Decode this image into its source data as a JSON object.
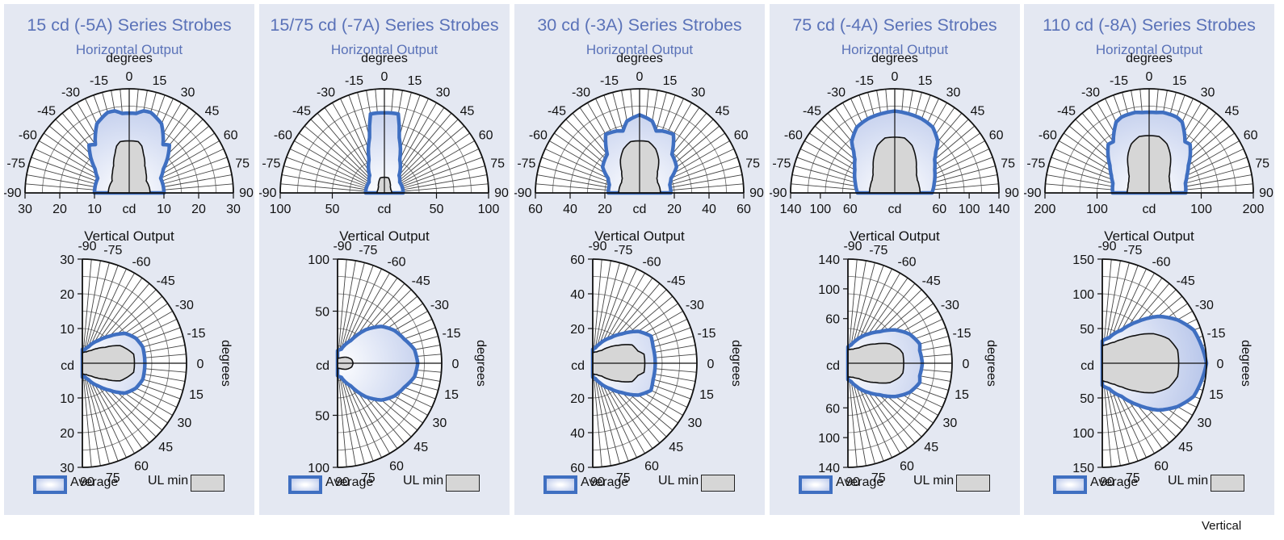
{
  "legend": {
    "average": "Average",
    "ul_min": "UL min"
  },
  "colors": {
    "panel_bg": "#e4e8f2",
    "title": "#5a72b8",
    "average_outline": "#3f6fc1",
    "average_fill_edge": "#b8c6ea",
    "ul_fill": "#d6d6d6"
  },
  "footer_text": "Vertical",
  "chart_data": [
    {
      "type": "polar",
      "title": "15 cd (-5A) Series Strobes",
      "horizontal": {
        "subtitle": "Horizontal Output",
        "angle_label": "degrees",
        "unit_label": "cd",
        "radial_max": 30,
        "radial_ticks": [
          30,
          20,
          10
        ],
        "angle_ticks": [
          -90,
          -75,
          -60,
          -45,
          -30,
          -15,
          0,
          15,
          30,
          45,
          60,
          75,
          90
        ],
        "average": [
          [
            0,
            23
          ],
          [
            5,
            23
          ],
          [
            10,
            24
          ],
          [
            15,
            24
          ],
          [
            25,
            22
          ],
          [
            35,
            17
          ],
          [
            40,
            18
          ],
          [
            45,
            16
          ],
          [
            55,
            12
          ],
          [
            65,
            10
          ],
          [
            75,
            10
          ],
          [
            90,
            10
          ]
        ],
        "ul_min": [
          [
            0,
            15
          ],
          [
            10,
            15
          ],
          [
            15,
            14
          ],
          [
            20,
            12
          ],
          [
            30,
            9
          ],
          [
            40,
            7.5
          ],
          [
            55,
            6
          ],
          [
            70,
            6
          ],
          [
            90,
            6
          ]
        ]
      },
      "vertical": {
        "title": "Vertical Output",
        "angle_label": "degrees",
        "unit_label": "cd",
        "radial_max": 30,
        "radial_ticks": [
          30,
          20,
          10
        ],
        "angle_ticks": [
          -90,
          -75,
          -60,
          -45,
          -30,
          -15,
          0,
          15,
          30,
          45,
          60,
          75,
          90
        ],
        "average": [
          [
            0,
            18
          ],
          [
            10,
            18
          ],
          [
            15,
            18
          ],
          [
            25,
            17
          ],
          [
            35,
            15
          ],
          [
            45,
            11
          ],
          [
            55,
            8
          ],
          [
            70,
            5
          ],
          [
            80,
            4
          ],
          [
            90,
            4
          ]
        ],
        "ul_min": [
          [
            0,
            15
          ],
          [
            10,
            15
          ],
          [
            15,
            14
          ],
          [
            25,
            12
          ],
          [
            35,
            8
          ],
          [
            45,
            6
          ],
          [
            55,
            4.5
          ],
          [
            70,
            3.5
          ],
          [
            90,
            3
          ]
        ]
      }
    },
    {
      "type": "polar",
      "title": "15/75 cd (-7A) Series Strobes",
      "horizontal": {
        "subtitle": "Horizontal Output",
        "angle_label": "degrees",
        "unit_label": "cd",
        "radial_max": 100,
        "radial_ticks": [
          100,
          50
        ],
        "angle_ticks": [
          -90,
          -75,
          -60,
          -45,
          -30,
          -15,
          0,
          15,
          30,
          45,
          60,
          75,
          90
        ],
        "average": [
          [
            0,
            77
          ],
          [
            5,
            77
          ],
          [
            10,
            77
          ],
          [
            15,
            55
          ],
          [
            25,
            35
          ],
          [
            40,
            22
          ],
          [
            55,
            18
          ],
          [
            70,
            18
          ],
          [
            90,
            18
          ]
        ],
        "ul_min": [
          [
            0,
            15
          ],
          [
            15,
            15
          ],
          [
            30,
            11
          ],
          [
            45,
            8
          ],
          [
            60,
            7
          ],
          [
            75,
            7
          ],
          [
            90,
            7
          ]
        ]
      },
      "vertical": {
        "title": "Vertical Output",
        "angle_label": "degrees",
        "unit_label": "cd",
        "radial_max": 100,
        "radial_ticks": [
          100,
          50
        ],
        "angle_ticks": [
          -90,
          -75,
          -60,
          -45,
          -30,
          -15,
          0,
          15,
          30,
          45,
          60,
          75,
          90
        ],
        "average": [
          [
            0,
            77
          ],
          [
            10,
            75
          ],
          [
            20,
            68
          ],
          [
            30,
            63
          ],
          [
            40,
            55
          ],
          [
            50,
            42
          ],
          [
            60,
            25
          ],
          [
            75,
            14
          ],
          [
            90,
            12
          ]
        ],
        "ul_min": [
          [
            0,
            15
          ],
          [
            15,
            14
          ],
          [
            30,
            11
          ],
          [
            45,
            8
          ],
          [
            60,
            6
          ],
          [
            75,
            5
          ],
          [
            90,
            5
          ]
        ]
      }
    },
    {
      "type": "polar",
      "title": "30 cd (-3A) Series Strobes",
      "horizontal": {
        "subtitle": "Horizontal Output",
        "angle_label": "degrees",
        "unit_label": "cd",
        "radial_max": 60,
        "radial_ticks": [
          60,
          40,
          20
        ],
        "angle_ticks": [
          -90,
          -75,
          -60,
          -45,
          -30,
          -15,
          0,
          15,
          30,
          45,
          60,
          75,
          90
        ],
        "average": [
          [
            0,
            45
          ],
          [
            10,
            42
          ],
          [
            15,
            37
          ],
          [
            20,
            38
          ],
          [
            30,
            39
          ],
          [
            40,
            29
          ],
          [
            45,
            28
          ],
          [
            55,
            26
          ],
          [
            65,
            20
          ],
          [
            75,
            18
          ],
          [
            90,
            18
          ]
        ],
        "ul_min": [
          [
            0,
            30
          ],
          [
            10,
            30
          ],
          [
            20,
            27
          ],
          [
            30,
            22
          ],
          [
            40,
            16
          ],
          [
            50,
            13
          ],
          [
            60,
            12
          ],
          [
            75,
            12
          ],
          [
            90,
            12
          ]
        ]
      },
      "vertical": {
        "title": "Vertical Output",
        "angle_label": "degrees",
        "unit_label": "cd",
        "radial_max": 60,
        "radial_ticks": [
          60,
          40,
          20
        ],
        "angle_ticks": [
          -90,
          -75,
          -60,
          -45,
          -30,
          -15,
          0,
          15,
          30,
          45,
          60,
          75,
          90
        ],
        "average": [
          [
            0,
            36
          ],
          [
            10,
            36
          ],
          [
            15,
            36
          ],
          [
            25,
            37
          ],
          [
            35,
            32
          ],
          [
            45,
            24
          ],
          [
            55,
            18
          ],
          [
            70,
            12
          ],
          [
            80,
            9
          ],
          [
            90,
            8
          ]
        ],
        "ul_min": [
          [
            0,
            30
          ],
          [
            10,
            30
          ],
          [
            15,
            27
          ],
          [
            25,
            25
          ],
          [
            35,
            18
          ],
          [
            45,
            13
          ],
          [
            55,
            9
          ],
          [
            70,
            7
          ],
          [
            90,
            6
          ]
        ]
      }
    },
    {
      "type": "polar",
      "title": "75 cd (-4A) Series Strobes",
      "horizontal": {
        "subtitle": "Horizontal Output",
        "angle_label": "degrees",
        "unit_label": "cd",
        "radial_max": 140,
        "radial_ticks": [
          140,
          100,
          60
        ],
        "angle_ticks": [
          -90,
          -75,
          -60,
          -45,
          -30,
          -15,
          0,
          15,
          30,
          45,
          60,
          75,
          90
        ],
        "average": [
          [
            0,
            110
          ],
          [
            10,
            108
          ],
          [
            20,
            106
          ],
          [
            30,
            102
          ],
          [
            40,
            90
          ],
          [
            45,
            78
          ],
          [
            50,
            70
          ],
          [
            60,
            62
          ],
          [
            75,
            55
          ],
          [
            90,
            50
          ]
        ],
        "ul_min": [
          [
            0,
            75
          ],
          [
            10,
            75
          ],
          [
            20,
            68
          ],
          [
            30,
            56
          ],
          [
            40,
            45
          ],
          [
            50,
            38
          ],
          [
            60,
            35
          ],
          [
            75,
            34
          ],
          [
            90,
            34
          ]
        ]
      },
      "vertical": {
        "title": "Vertical Output",
        "angle_label": "degrees",
        "unit_label": "cd",
        "radial_max": 140,
        "radial_ticks": [
          140,
          100,
          60
        ],
        "angle_ticks": [
          -90,
          -75,
          -60,
          -45,
          -30,
          -15,
          0,
          15,
          30,
          45,
          60,
          75,
          90
        ],
        "average": [
          [
            0,
            100
          ],
          [
            10,
            98
          ],
          [
            15,
            100
          ],
          [
            25,
            92
          ],
          [
            35,
            78
          ],
          [
            45,
            60
          ],
          [
            55,
            48
          ],
          [
            70,
            33
          ],
          [
            80,
            25
          ],
          [
            90,
            22
          ]
        ],
        "ul_min": [
          [
            0,
            75
          ],
          [
            10,
            75
          ],
          [
            15,
            72
          ],
          [
            25,
            62
          ],
          [
            35,
            45
          ],
          [
            45,
            34
          ],
          [
            55,
            25
          ],
          [
            70,
            20
          ],
          [
            90,
            18
          ]
        ]
      }
    },
    {
      "type": "polar",
      "title": "110 cd (-8A) Series Strobes",
      "horizontal": {
        "subtitle": "Horizontal Output",
        "angle_label": "degrees",
        "unit_label": "cd",
        "radial_max": 200,
        "radial_ticks": [
          200,
          100
        ],
        "angle_ticks": [
          -90,
          -75,
          -60,
          -45,
          -30,
          -15,
          0,
          15,
          30,
          45,
          60,
          75,
          90
        ],
        "average": [
          [
            0,
            155
          ],
          [
            5,
            155
          ],
          [
            10,
            157
          ],
          [
            20,
            155
          ],
          [
            25,
            150
          ],
          [
            35,
            120
          ],
          [
            40,
            122
          ],
          [
            45,
            112
          ],
          [
            55,
            92
          ],
          [
            65,
            80
          ],
          [
            75,
            72
          ],
          [
            90,
            70
          ]
        ],
        "ul_min": [
          [
            0,
            110
          ],
          [
            10,
            110
          ],
          [
            20,
            100
          ],
          [
            30,
            82
          ],
          [
            40,
            62
          ],
          [
            50,
            50
          ],
          [
            60,
            45
          ],
          [
            75,
            42
          ],
          [
            90,
            42
          ]
        ]
      },
      "vertical": {
        "title": "Vertical Output",
        "angle_label": "degrees",
        "unit_label": "cd",
        "radial_max": 150,
        "radial_ticks": [
          150,
          100,
          50
        ],
        "angle_ticks": [
          -90,
          -75,
          -60,
          -45,
          -30,
          -15,
          0,
          15,
          30,
          45,
          60,
          75,
          90
        ],
        "average": [
          [
            0,
            150
          ],
          [
            10,
            145
          ],
          [
            20,
            140
          ],
          [
            30,
            125
          ],
          [
            40,
            105
          ],
          [
            50,
            78
          ],
          [
            60,
            55
          ],
          [
            75,
            38
          ],
          [
            90,
            32
          ]
        ],
        "ul_min": [
          [
            0,
            110
          ],
          [
            10,
            110
          ],
          [
            20,
            102
          ],
          [
            30,
            85
          ],
          [
            40,
            62
          ],
          [
            50,
            45
          ],
          [
            60,
            35
          ],
          [
            75,
            28
          ],
          [
            90,
            25
          ]
        ]
      }
    }
  ]
}
